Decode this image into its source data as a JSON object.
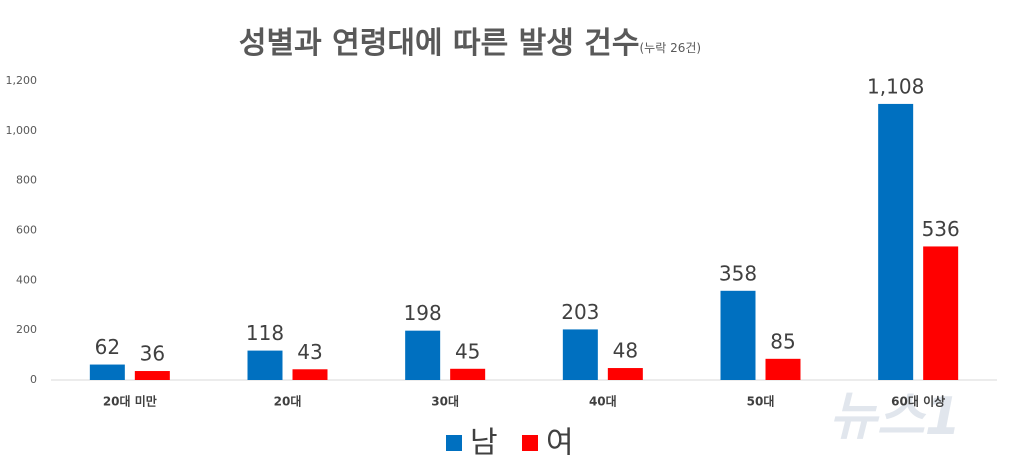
{
  "chart_data": {
    "type": "bar",
    "title": "성별과 연령대에 따른 발생 건수",
    "subtitle": "(누락 26건)",
    "categories": [
      "20대 미만",
      "20대",
      "30대",
      "40대",
      "50대",
      "60대 이상"
    ],
    "series": [
      {
        "name": "남",
        "color": "#0070c0",
        "values": [
          62,
          118,
          198,
          203,
          358,
          1108
        ],
        "value_labels": [
          "62",
          "118",
          "198",
          "203",
          "358",
          "1,108"
        ]
      },
      {
        "name": "여",
        "color": "#ff0000",
        "values": [
          36,
          43,
          45,
          48,
          85,
          536
        ]
      }
    ],
    "ylim": [
      0,
      1200
    ],
    "yticks": [
      0,
      200,
      400,
      600,
      800,
      {
        "value": 1000,
        "label": "1,000"
      },
      {
        "value": 1200,
        "label": "1,200"
      }
    ],
    "grid": false,
    "watermark": "뉴스1"
  }
}
